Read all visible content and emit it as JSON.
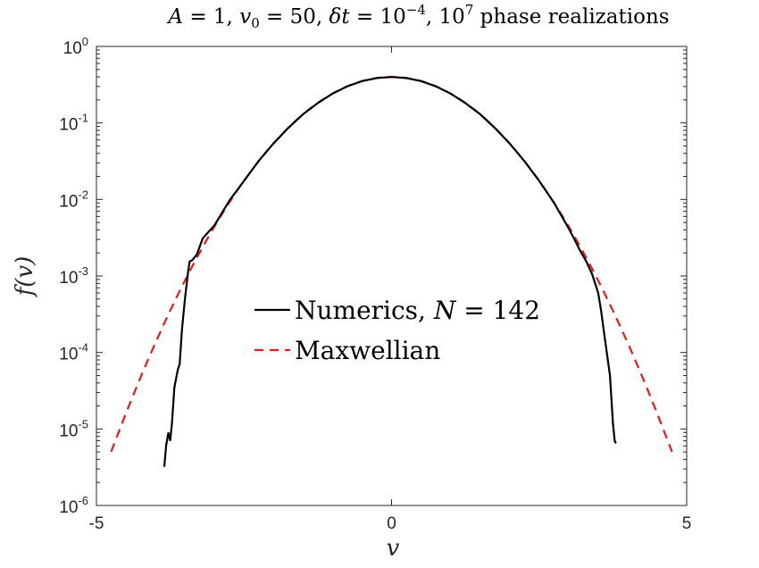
{
  "chart_data": {
    "type": "line",
    "title_parts": {
      "a": "A",
      "b": " = 1, ",
      "c": "v",
      "d": "0",
      "e": " = 50, ",
      "f": "δt",
      "g": " = 10",
      "h": "−4",
      "i": ", 10",
      "j": "7",
      "k": " phase realizations"
    },
    "xlabel": "v",
    "ylabel": "f(v)",
    "xlim": [
      -5,
      5
    ],
    "ylim": [
      1e-06,
      1
    ],
    "yscale": "log",
    "grid": false,
    "legend_position": "center",
    "x_ticks": [
      {
        "value": -5,
        "label": "-5"
      },
      {
        "value": 0,
        "label": "0"
      },
      {
        "value": 5,
        "label": "5"
      }
    ],
    "y_ticks": [
      {
        "value": 1e-06,
        "base": "10",
        "exp": "-6"
      },
      {
        "value": 1e-05,
        "base": "10",
        "exp": "-5"
      },
      {
        "value": 0.0001,
        "base": "10",
        "exp": "-4"
      },
      {
        "value": 0.001,
        "base": "10",
        "exp": "-3"
      },
      {
        "value": 0.01,
        "base": "10",
        "exp": "-2"
      },
      {
        "value": 0.1,
        "base": "10",
        "exp": "-1"
      },
      {
        "value": 1,
        "base": "10",
        "exp": "0"
      }
    ],
    "series": [
      {
        "name": "Numerics, N = 142",
        "legend_text": "Numerics, ",
        "legend_math": "N",
        "legend_tail": " = 142",
        "color": "#000000",
        "dash": "solid",
        "points": [
          [
            -3.85,
            3.2e-06
          ],
          [
            -3.82,
            6e-06
          ],
          [
            -3.78,
            9e-06
          ],
          [
            -3.75,
            7e-06
          ],
          [
            -3.72,
            1.2e-05
          ],
          [
            -3.68,
            3.5e-05
          ],
          [
            -3.62,
            6e-05
          ],
          [
            -3.59,
            7e-05
          ],
          [
            -3.55,
            0.0002
          ],
          [
            -3.5,
            0.0005
          ],
          [
            -3.45,
            0.0011
          ],
          [
            -3.42,
            0.00155
          ],
          [
            -3.38,
            0.0016
          ],
          [
            -3.3,
            0.0019
          ],
          [
            -3.2,
            0.0031
          ],
          [
            -3.0,
            0.0046
          ],
          [
            -2.75,
            0.0096
          ],
          [
            -2.5,
            0.0175
          ],
          [
            -2.25,
            0.032
          ],
          [
            -2.0,
            0.054
          ],
          [
            -1.75,
            0.086
          ],
          [
            -1.5,
            0.13
          ],
          [
            -1.25,
            0.182
          ],
          [
            -1.0,
            0.242
          ],
          [
            -0.75,
            0.301
          ],
          [
            -0.5,
            0.352
          ],
          [
            -0.25,
            0.386
          ],
          [
            0.0,
            0.399
          ],
          [
            0.25,
            0.386
          ],
          [
            0.5,
            0.352
          ],
          [
            0.75,
            0.301
          ],
          [
            1.0,
            0.242
          ],
          [
            1.25,
            0.182
          ],
          [
            1.5,
            0.13
          ],
          [
            1.75,
            0.086
          ],
          [
            2.0,
            0.054
          ],
          [
            2.25,
            0.0317
          ],
          [
            2.5,
            0.0175
          ],
          [
            2.75,
            0.0091
          ],
          [
            3.0,
            0.0042
          ],
          [
            3.1,
            0.003
          ],
          [
            3.2,
            0.0021
          ],
          [
            3.3,
            0.00155
          ],
          [
            3.4,
            0.00105
          ],
          [
            3.5,
            0.0006
          ],
          [
            3.55,
            0.00035
          ],
          [
            3.62,
            0.00014
          ],
          [
            3.7,
            5e-05
          ],
          [
            3.75,
            1.2e-05
          ],
          [
            3.78,
            7e-06
          ],
          [
            3.8,
            6.5e-06
          ]
        ]
      },
      {
        "name": "Maxwellian",
        "legend_text": "Maxwellian",
        "color": "#e8191c",
        "dash": "dashed",
        "function": "exp(-v^2/2)/sqrt(2*pi)",
        "x_range": [
          -4.75,
          4.75
        ]
      }
    ]
  }
}
